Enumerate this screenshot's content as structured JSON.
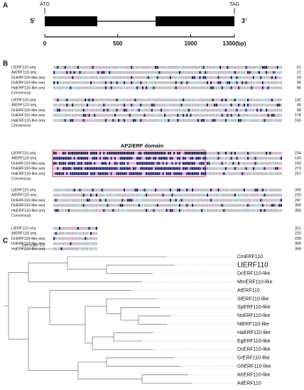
{
  "panel_a": {
    "label": "A",
    "start_codon": "ATG",
    "stop_codon": "TAG",
    "five_prime": "5’",
    "three_prime": "3’",
    "xlim": [
      0,
      1300
    ],
    "xticks": [
      0,
      500,
      1000,
      {
        "value": 1300,
        "label": "1300(bp)"
      }
    ],
    "exons": [
      [
        0,
        360
      ],
      [
        760,
        1300
      ]
    ]
  },
  "panel_b": {
    "label": "B",
    "domain_label": "AP2/ERF domain",
    "consensus_label": "Consensus",
    "sequences": [
      "LlERF110.seq",
      "AtERF110.seq",
      "DcERF110-like.seq",
      "DsERF110-like.seq",
      "HaERF110-like.seq"
    ],
    "blocks": [
      [
        61,
        22,
        23,
        96,
        86
      ],
      [
        142,
        48,
        99,
        178,
        165
      ],
      [
        234,
        140,
        160,
        273,
        257
      ],
      [
        306,
        220,
        247,
        366,
        350
      ],
      [
        321,
        220,
        299,
        390,
        369
      ]
    ]
  },
  "panel_c": {
    "label": "C",
    "tree_scale": "Tree scale: 0.1",
    "leaves": [
      "CmERF110",
      "LlERF110",
      "DcERF110-like",
      "MmERF110-like",
      "AtERF110",
      "StERF110-like",
      "SpERF110-like",
      "NsERF110-like",
      "NtERF110-like",
      "HaERF110-like",
      "EgERF110-like",
      "DsERF110-like",
      "GrERF110-like",
      "GhERF110-like",
      "AhERF110-like",
      "AdERF110"
    ],
    "highlight": 1,
    "highlight_color": "#e05a5a"
  }
}
